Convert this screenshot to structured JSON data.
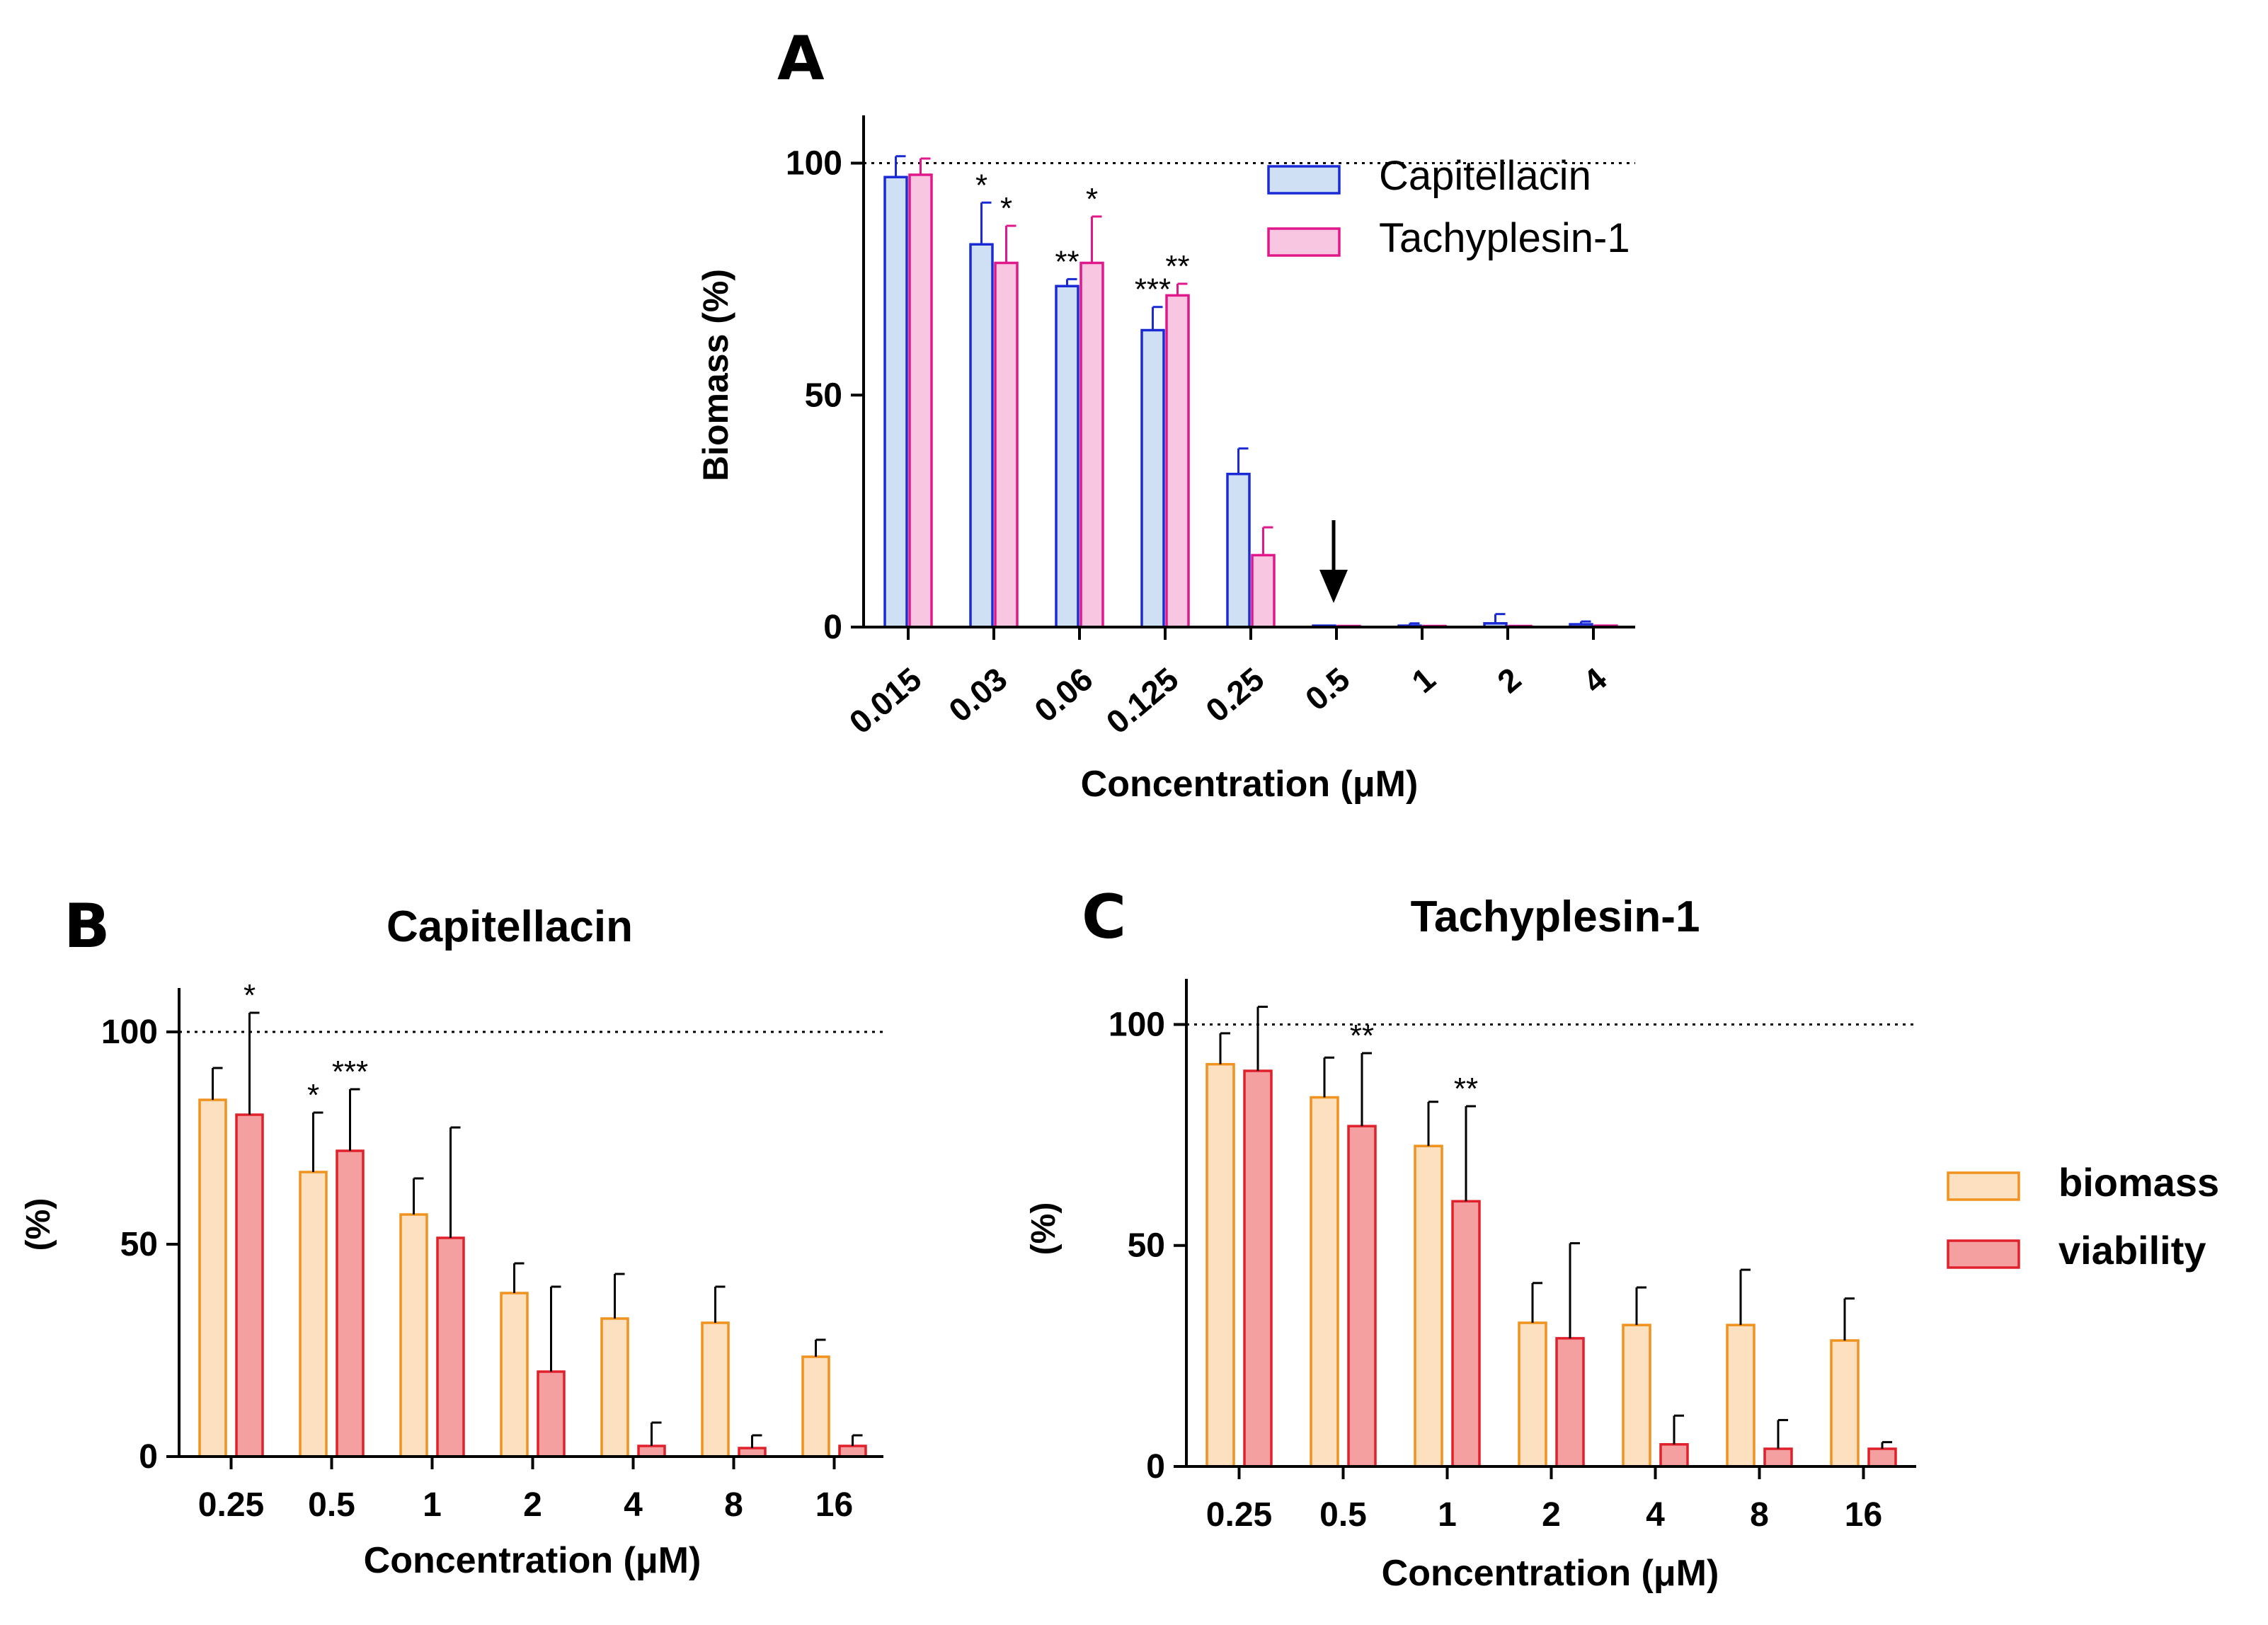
{
  "chart_data": [
    {
      "panel_letter": "A",
      "type": "bar",
      "title": "",
      "xlabel": "Concentration (μM)",
      "ylabel": "Biomass (%)",
      "ylim": [
        0,
        110
      ],
      "yticks": [
        "0",
        "50",
        "100"
      ],
      "reference_line": 100,
      "categories": [
        "0.015",
        "0.03",
        "0.06",
        "0.125",
        "0.25",
        "0.5",
        "1",
        "2",
        "4"
      ],
      "series": [
        {
          "name": "Capitellacin",
          "values": [
            97,
            82.5,
            73.5,
            64,
            33,
            0.3,
            0.3,
            0.8,
            0.6
          ],
          "errors": [
            4.5,
            9,
            1.5,
            5,
            5.5,
            0.3,
            0.5,
            2,
            0.6
          ],
          "significance": [
            "",
            "*",
            "**",
            "***",
            "",
            "",
            "",
            "",
            ""
          ]
        },
        {
          "name": "Tachyplesin-1",
          "values": [
            97.5,
            78.5,
            78.5,
            71.5,
            15.5,
            0.2,
            0.1,
            0.2,
            0.3
          ],
          "errors": [
            3.5,
            8,
            10,
            2.5,
            6,
            0.2,
            0.1,
            0.2,
            0.3
          ],
          "significance": [
            "",
            "*",
            "*",
            "**",
            "",
            "",
            "",
            "",
            ""
          ]
        }
      ],
      "annotation_arrow_at": "0.5",
      "colors": {
        "Capitellacin_fill": "#cfe0f5",
        "Capitellacin_stroke": "#1a2bd6",
        "Tachyplesin-1_fill": "#f8c6e0",
        "Tachyplesin-1_stroke": "#e0188c"
      },
      "legend_position": "top-right"
    },
    {
      "panel_letter": "B",
      "type": "bar",
      "title": "Capitellacin",
      "xlabel": "Concentration (μM)",
      "ylabel": "(%)",
      "ylim": [
        0,
        110
      ],
      "yticks": [
        "0",
        "50",
        "100"
      ],
      "reference_line": 100,
      "categories": [
        "0.25",
        "0.5",
        "1",
        "2",
        "4",
        "8",
        "16"
      ],
      "series": [
        {
          "name": "biomass",
          "values": [
            84,
            67,
            57,
            38.5,
            32.5,
            31.5,
            23.5
          ],
          "errors": [
            7.5,
            14,
            8.5,
            7,
            10.5,
            8.5,
            4
          ],
          "significance": [
            "",
            "*",
            "",
            "",
            "",
            "",
            ""
          ]
        },
        {
          "name": "viability",
          "values": [
            80.5,
            72,
            51.5,
            20,
            2.5,
            2,
            2.5
          ],
          "errors": [
            24,
            14.5,
            26,
            20,
            5.5,
            3,
            2.5
          ],
          "significance": [
            "*",
            "***",
            "",
            "",
            "",
            "",
            ""
          ]
        }
      ]
    },
    {
      "panel_letter": "C",
      "type": "bar",
      "title": "Tachyplesin-1",
      "xlabel": "Concentration (μM)",
      "ylabel": "(%)",
      "ylim": [
        0,
        110
      ],
      "yticks": [
        "0",
        "50",
        "100"
      ],
      "reference_line": 100,
      "categories": [
        "0.25",
        "0.5",
        "1",
        "2",
        "4",
        "8",
        "16"
      ],
      "series": [
        {
          "name": "biomass",
          "values": [
            91,
            83.5,
            72.5,
            32.5,
            32,
            32,
            28.5
          ],
          "errors": [
            7,
            9,
            10,
            9,
            8.5,
            12.5,
            9.5
          ],
          "significance": [
            "",
            "",
            "",
            "",
            "",
            "",
            ""
          ]
        },
        {
          "name": "viability",
          "values": [
            89.5,
            77,
            60,
            29,
            5,
            4,
            4
          ],
          "errors": [
            14.5,
            16.5,
            21.5,
            21.5,
            6.5,
            6.5,
            1.5
          ],
          "significance": [
            "",
            "**",
            "**",
            "",
            "",
            "",
            ""
          ]
        }
      ],
      "colors": {
        "biomass_fill": "#fde0c0",
        "biomass_stroke": "#f0921e",
        "viability_fill": "#f4a0a0",
        "viability_stroke": "#e0202a"
      },
      "legend_position": "right"
    }
  ]
}
